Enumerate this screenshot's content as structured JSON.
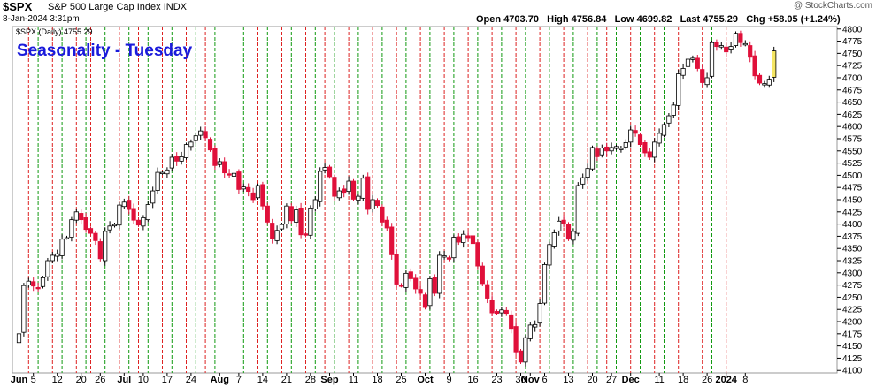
{
  "header": {
    "symbol": "$SPX",
    "name": "S&P 500 Large Cap Index",
    "exchange": "INDX",
    "date": "8-Jan-2024 3:31pm",
    "open_label": "Open",
    "open": "4703.70",
    "high_label": "High",
    "high": "4756.84",
    "low_label": "Low",
    "low": "4699.82",
    "last_label": "Last",
    "last": "4755.29",
    "chg_label": "Chg",
    "chg": "+58.05 (+1.24%)",
    "watermark": "@ StockCharts.com"
  },
  "chart_data": {
    "type": "candlestick",
    "title": "Seasonality - Tuesday",
    "legend": "$SPX (Daily) 4755.29",
    "ylim": [
      4095,
      4805
    ],
    "yticks": [
      4100,
      4125,
      4150,
      4175,
      4200,
      4225,
      4250,
      4275,
      4300,
      4325,
      4350,
      4375,
      4400,
      4425,
      4450,
      4475,
      4500,
      4525,
      4550,
      4575,
      4600,
      4625,
      4650,
      4675,
      4700,
      4725,
      4750,
      4775,
      4800
    ],
    "xticks": [
      {
        "label": "Jun",
        "bar": 0,
        "bold": true
      },
      {
        "label": "5",
        "bar": 3
      },
      {
        "label": "12",
        "bar": 8
      },
      {
        "label": "20",
        "bar": 13
      },
      {
        "label": "26",
        "bar": 17
      },
      {
        "label": "Jul",
        "bar": 22,
        "bold": true
      },
      {
        "label": "10",
        "bar": 26
      },
      {
        "label": "17",
        "bar": 31
      },
      {
        "label": "24",
        "bar": 36
      },
      {
        "label": "Aug",
        "bar": 42,
        "bold": true
      },
      {
        "label": "7",
        "bar": 46
      },
      {
        "label": "14",
        "bar": 51
      },
      {
        "label": "21",
        "bar": 56
      },
      {
        "label": "28",
        "bar": 61
      },
      {
        "label": "Sep",
        "bar": 65,
        "bold": true
      },
      {
        "label": "11",
        "bar": 70
      },
      {
        "label": "18",
        "bar": 75
      },
      {
        "label": "25",
        "bar": 80
      },
      {
        "label": "Oct",
        "bar": 85,
        "bold": true
      },
      {
        "label": "9",
        "bar": 90
      },
      {
        "label": "16",
        "bar": 95
      },
      {
        "label": "23",
        "bar": 100
      },
      {
        "label": "30",
        "bar": 105
      },
      {
        "label": "Nov",
        "bar": 107,
        "bold": true
      },
      {
        "label": "6",
        "bar": 110
      },
      {
        "label": "13",
        "bar": 115
      },
      {
        "label": "20",
        "bar": 120
      },
      {
        "label": "27",
        "bar": 124
      },
      {
        "label": "Dec",
        "bar": 128,
        "bold": true
      },
      {
        "label": "11",
        "bar": 134
      },
      {
        "label": "18",
        "bar": 139
      },
      {
        "label": "26",
        "bar": 144
      },
      {
        "label": "2024",
        "bar": 148,
        "bold": true
      },
      {
        "label": "8",
        "bar": 152
      }
    ],
    "tuesday_bars": {
      "green": [
        4,
        9,
        14,
        18,
        23,
        27,
        32,
        37,
        41,
        47,
        52,
        57,
        62,
        66,
        71,
        76,
        81,
        86,
        91,
        96,
        101,
        106,
        111,
        116,
        121,
        125,
        130,
        135,
        140,
        145
      ],
      "red": [
        2,
        7,
        12,
        15,
        21,
        25,
        30,
        35,
        39,
        45,
        50,
        55,
        60,
        64,
        69,
        74,
        79,
        84,
        89,
        94,
        99,
        104,
        109,
        114,
        119,
        123,
        128,
        133,
        138,
        143,
        148
      ]
    },
    "colors": {
      "up": "#ffffff",
      "down": "#e0103a",
      "up_outline": "#000000",
      "last_bar": "#f5e663",
      "title": "#1a1adb",
      "green_line": "#119911",
      "red_line": "#dd2222"
    },
    "close": [
      4175,
      4274,
      4283,
      4273,
      4268,
      4290,
      4325,
      4336,
      4339,
      4369,
      4372,
      4409,
      4425,
      4409,
      4389,
      4381,
      4366,
      4329,
      4385,
      4396,
      4399,
      4439,
      4445,
      4430,
      4408,
      4398,
      4413,
      4440,
      4468,
      4506,
      4506,
      4511,
      4537,
      4529,
      4538,
      4563,
      4568,
      4581,
      4591,
      4577,
      4552,
      4520,
      4528,
      4505,
      4502,
      4504,
      4471,
      4476,
      4467,
      4450,
      4479,
      4437,
      4404,
      4370,
      4387,
      4399,
      4437,
      4407,
      4429,
      4378,
      4377,
      4433,
      4450,
      4508,
      4516,
      4497,
      4457,
      4468,
      4465,
      4488,
      4451,
      4457,
      4494,
      4430,
      4450,
      4438,
      4404,
      4392,
      4337,
      4277,
      4274,
      4299,
      4288,
      4267,
      4258,
      4229,
      4288,
      4258,
      4336,
      4335,
      4328,
      4373,
      4363,
      4379,
      4372,
      4360,
      4314,
      4278,
      4248,
      4218,
      4217,
      4224,
      4217,
      4186,
      4138,
      4117,
      4167,
      4193,
      4194,
      4237,
      4317,
      4358,
      4382,
      4406,
      4400,
      4369,
      4385,
      4479,
      4495,
      4514,
      4557,
      4538,
      4556,
      4550,
      4557,
      4559,
      4555,
      4567,
      4593,
      4586,
      4563,
      4546,
      4537,
      4568,
      4586,
      4604,
      4622,
      4644,
      4708,
      4719,
      4738,
      4740,
      4719,
      4690,
      4700,
      4772,
      4764,
      4766,
      4753,
      4764,
      4791,
      4772,
      4770,
      4742,
      4704,
      4689,
      4688,
      4697,
      4755
    ]
  }
}
